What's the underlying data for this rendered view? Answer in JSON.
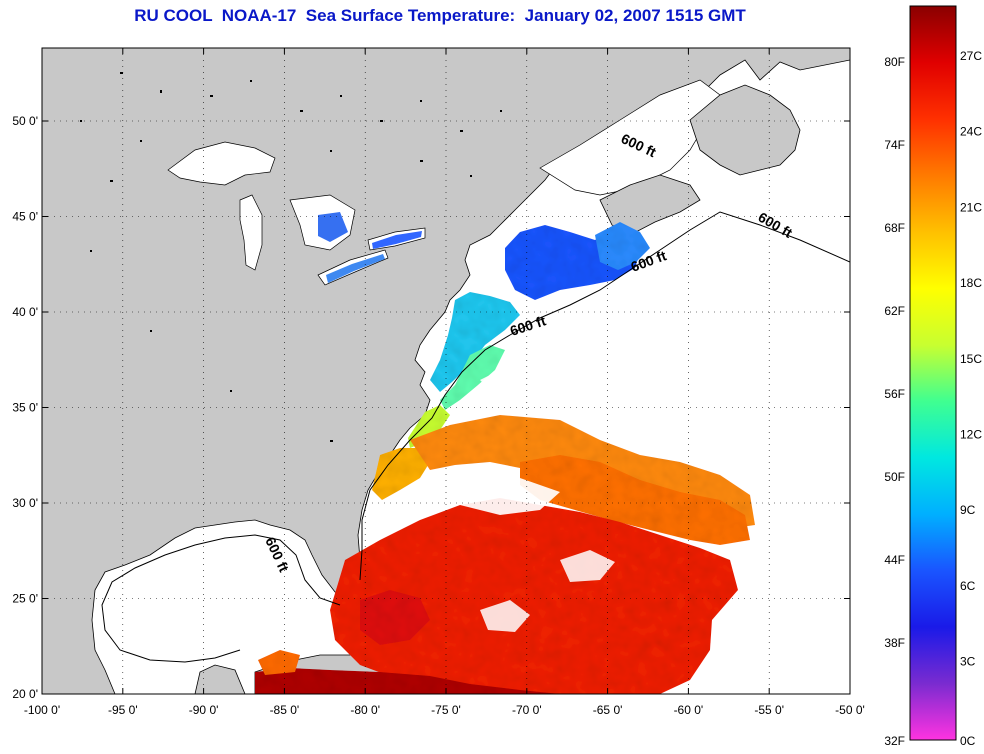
{
  "title": "RU COOL  NOAA-17  Sea Surface Temperature:  January 02, 2007 1515 GMT",
  "map": {
    "lon_ticks": [
      "-100 0'",
      "-95 0'",
      "-90 0'",
      "-85 0'",
      "-80 0'",
      "-75 0'",
      "-70 0'",
      "-65 0'",
      "-60 0'",
      "-55 0'",
      "-50 0'"
    ],
    "lat_ticks": [
      "50 0'",
      "45 0'",
      "40 0'",
      "35 0'",
      "30 0'",
      "25 0'",
      "20 0'"
    ],
    "contour_label": "600 ft",
    "land_color": "#c8c8c8",
    "water_color": "#ffffff"
  },
  "colorbar": {
    "fahrenheit_labels": [
      "80F",
      "74F",
      "68F",
      "62F",
      "56F",
      "50F",
      "44F",
      "38F",
      "32F"
    ],
    "celsius_labels": [
      "27C",
      "24C",
      "21C",
      "18C",
      "15C",
      "12C",
      "9C",
      "6C",
      "3C",
      "0C"
    ],
    "colors": [
      "#ff33e0",
      "#7a2bd0",
      "#1a1ae8",
      "#1a55ff",
      "#00b0ff",
      "#00e8e0",
      "#40ff90",
      "#c8ff30",
      "#ffff00",
      "#ffc000",
      "#ff7a00",
      "#ff3000",
      "#e00000",
      "#8a0000"
    ]
  }
}
